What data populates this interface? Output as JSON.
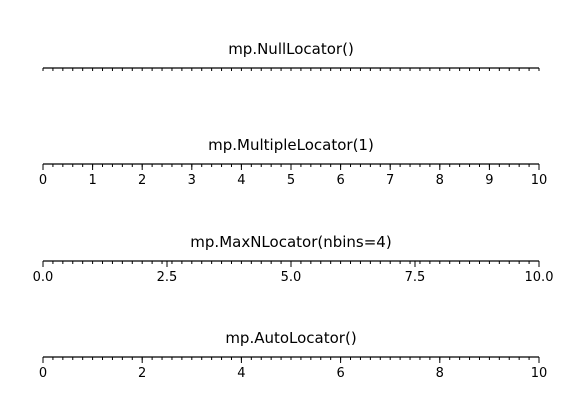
{
  "chart_data": [
    {
      "type": "axis",
      "title": "mp.NullLocator()",
      "xlim": [
        0,
        10
      ],
      "major_ticks": [],
      "tick_labels": [],
      "minor_step": 0.2
    },
    {
      "type": "axis",
      "title": "mp.MultipleLocator(1)",
      "xlim": [
        0,
        10
      ],
      "major_ticks": [
        0,
        1,
        2,
        3,
        4,
        5,
        6,
        7,
        8,
        9,
        10
      ],
      "tick_labels": [
        "0",
        "1",
        "2",
        "3",
        "4",
        "5",
        "6",
        "7",
        "8",
        "9",
        "10"
      ],
      "minor_step": 0.2
    },
    {
      "type": "axis",
      "title": "mp.MaxNLocator(nbins=4)",
      "xlim": [
        0,
        10
      ],
      "major_ticks": [
        0,
        2.5,
        5,
        7.5,
        10
      ],
      "tick_labels": [
        "0.0",
        "2.5",
        "5.0",
        "7.5",
        "10.0"
      ],
      "minor_step": 0.2
    },
    {
      "type": "axis",
      "title": "mp.AutoLocator()",
      "xlim": [
        0,
        10
      ],
      "major_ticks": [
        0,
        2,
        4,
        6,
        8,
        10
      ],
      "tick_labels": [
        "0",
        "2",
        "4",
        "6",
        "8",
        "10"
      ],
      "minor_step": 0.2
    }
  ]
}
